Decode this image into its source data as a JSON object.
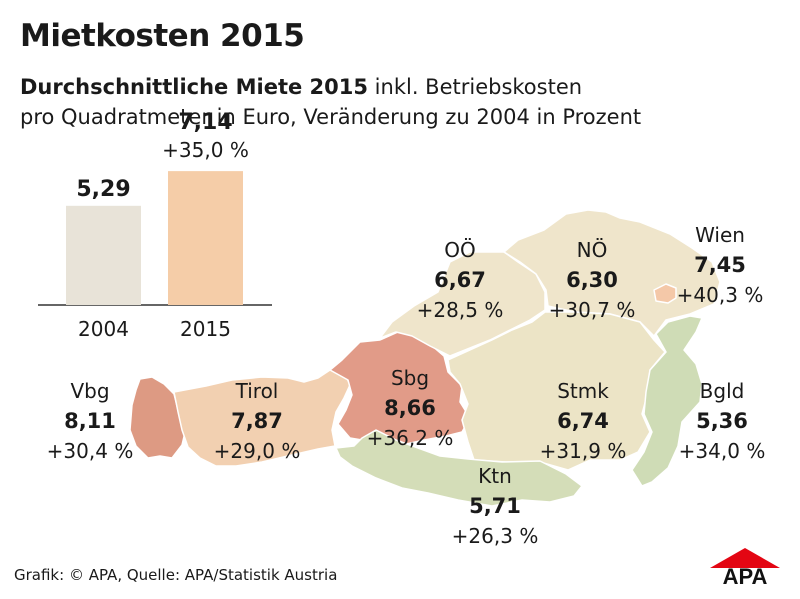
{
  "page": {
    "title": "Mietkosten 2015",
    "subtitle_bold": "Durchschnittliche Miete 2015",
    "subtitle_rest": " inkl. Betriebskosten",
    "subtitle_line2": "pro Quadratmeter in Euro, Veränderung zu 2004 in Prozent",
    "footer": "Grafik: © APA, Quelle: APA/Statistik Austria",
    "logo_text": "APA"
  },
  "chart_data": [
    {
      "type": "bar",
      "categories": [
        "2004",
        "2015"
      ],
      "values": [
        5.29,
        7.14
      ],
      "value_labels": [
        "5,29",
        "7,14"
      ],
      "change_label": "+35,0 %",
      "ylim": [
        0,
        8
      ],
      "colors": [
        "#e8e3d8",
        "#f5cda8"
      ]
    },
    {
      "type": "choropleth",
      "regions": [
        {
          "key": "vbg",
          "name": "Vbg",
          "value": 8.11,
          "value_label": "8,11",
          "change": 30.4,
          "change_label": "+30,4 %",
          "color": "#dd9a83"
        },
        {
          "key": "tirol",
          "name": "Tirol",
          "value": 7.87,
          "value_label": "7,87",
          "change": 29.0,
          "change_label": "+29,0 %",
          "color": "#f2d0b1"
        },
        {
          "key": "sbg",
          "name": "Sbg",
          "value": 8.66,
          "value_label": "8,66",
          "change": 36.2,
          "change_label": "+36,2 %",
          "color": "#e19b88"
        },
        {
          "key": "ooe",
          "name": "OÖ",
          "value": 6.67,
          "value_label": "6,67",
          "change": 28.5,
          "change_label": "+28,5 %",
          "color": "#efe5cb"
        },
        {
          "key": "noe",
          "name": "NÖ",
          "value": 6.3,
          "value_label": "6,30",
          "change": 30.7,
          "change_label": "+30,7 %",
          "color": "#efe5cb"
        },
        {
          "key": "wien",
          "name": "Wien",
          "value": 7.45,
          "value_label": "7,45",
          "change": 40.3,
          "change_label": "+40,3 %",
          "color": "#f4c8a8"
        },
        {
          "key": "stmk",
          "name": "Stmk",
          "value": 6.74,
          "value_label": "6,74",
          "change": 31.9,
          "change_label": "+31,9 %",
          "color": "#ece4c6"
        },
        {
          "key": "bgld",
          "name": "Bgld",
          "value": 5.36,
          "value_label": "5,36",
          "change": 34.0,
          "change_label": "+34,0 %",
          "color": "#cfdcb6"
        },
        {
          "key": "ktn",
          "name": "Ktn",
          "value": 5.71,
          "value_label": "5,71",
          "change": 26.3,
          "change_label": "+26,3 %",
          "color": "#d4ddb8"
        }
      ]
    }
  ]
}
